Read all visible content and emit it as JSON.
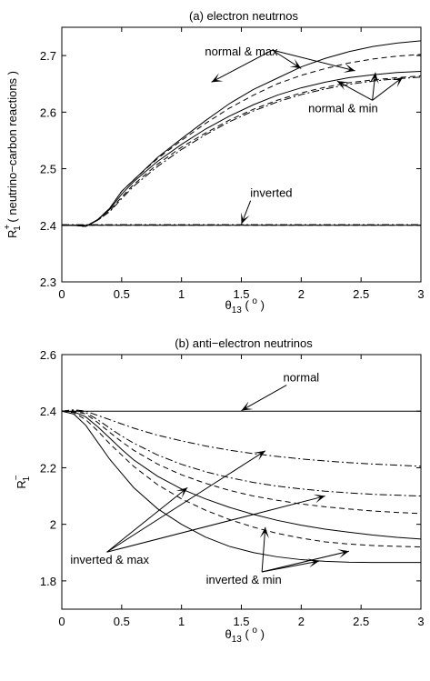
{
  "chart_data": [
    {
      "type": "line",
      "title": "(a) electron neutrnos",
      "xlabel": "θ13 ( o )",
      "ylabel": "R1+ ( neutrino−carbon reactions )",
      "xlim": [
        0,
        3
      ],
      "ylim": [
        2.3,
        2.75
      ],
      "xticks": [
        "0",
        "0.5",
        "1",
        "1.5",
        "2",
        "2.5",
        "3"
      ],
      "yticks": [
        "2.3",
        "2.4",
        "2.5",
        "2.6",
        "2.7"
      ],
      "grid": false,
      "x": [
        0,
        0.1,
        0.2,
        0.3,
        0.4,
        0.5,
        0.6,
        0.8,
        1.0,
        1.2,
        1.4,
        1.6,
        1.8,
        2.0,
        2.2,
        2.4,
        2.6,
        2.8,
        3.0
      ],
      "series": [
        {
          "style": "solid",
          "values": [
            2.4,
            2.4,
            2.398,
            2.41,
            2.43,
            2.46,
            2.48,
            2.52,
            2.553,
            2.585,
            2.615,
            2.64,
            2.66,
            2.68,
            2.695,
            2.707,
            2.716,
            2.722,
            2.726
          ]
        },
        {
          "style": "dashed",
          "values": [
            2.4,
            2.4,
            2.398,
            2.41,
            2.43,
            2.46,
            2.48,
            2.518,
            2.55,
            2.58,
            2.607,
            2.63,
            2.65,
            2.665,
            2.677,
            2.687,
            2.694,
            2.699,
            2.702
          ]
        },
        {
          "style": "solid",
          "values": [
            2.4,
            2.4,
            2.398,
            2.41,
            2.428,
            2.455,
            2.477,
            2.513,
            2.543,
            2.57,
            2.593,
            2.613,
            2.63,
            2.643,
            2.653,
            2.661,
            2.666,
            2.67,
            2.672
          ]
        },
        {
          "style": "dashed",
          "values": [
            2.4,
            2.4,
            2.398,
            2.409,
            2.425,
            2.45,
            2.472,
            2.508,
            2.538,
            2.563,
            2.586,
            2.605,
            2.621,
            2.634,
            2.644,
            2.652,
            2.657,
            2.661,
            2.664
          ]
        },
        {
          "style": "dashdot",
          "values": [
            2.4,
            2.4,
            2.398,
            2.409,
            2.424,
            2.447,
            2.469,
            2.504,
            2.534,
            2.56,
            2.583,
            2.602,
            2.618,
            2.631,
            2.641,
            2.649,
            2.655,
            2.659,
            2.662
          ]
        },
        {
          "style": "solid",
          "values": [
            2.4,
            2.4,
            2.4,
            2.4,
            2.4,
            2.4,
            2.4,
            2.4,
            2.4,
            2.4,
            2.4,
            2.4,
            2.4,
            2.4,
            2.4,
            2.4,
            2.4,
            2.4,
            2.4
          ]
        },
        {
          "style": "dashed",
          "values": [
            2.4,
            2.4,
            2.4,
            2.4,
            2.4,
            2.4,
            2.4,
            2.4,
            2.4,
            2.4,
            2.4,
            2.4,
            2.4,
            2.4,
            2.4,
            2.4,
            2.4,
            2.4,
            2.4
          ]
        },
        {
          "style": "dashdot",
          "values": [
            2.401,
            2.401,
            2.401,
            2.401,
            2.401,
            2.401,
            2.401,
            2.401,
            2.401,
            2.401,
            2.401,
            2.401,
            2.401,
            2.401,
            2.401,
            2.401,
            2.401,
            2.401,
            2.401
          ]
        }
      ],
      "annotations": [
        {
          "text": "normal & max",
          "x": 1.5,
          "y": 2.7,
          "arrows_to": [
            [
              1.25,
              2.653
            ],
            [
              2.0,
              2.677
            ],
            [
              2.45,
              2.673
            ]
          ]
        },
        {
          "text": "normal & min",
          "x": 2.35,
          "y": 2.6,
          "arrows_to": [
            [
              2.3,
              2.655
            ],
            [
              2.62,
              2.67
            ],
            [
              2.85,
              2.662
            ]
          ]
        },
        {
          "text": "inverted",
          "x": 1.75,
          "y": 2.45,
          "arrows_to": [
            [
              1.5,
              2.402
            ]
          ]
        }
      ]
    },
    {
      "type": "line",
      "title": "(b) anti−electron neutrinos",
      "xlabel": "θ13 ( o )",
      "ylabel": "R1−",
      "xlim": [
        0,
        3
      ],
      "ylim": [
        1.7,
        2.6
      ],
      "xticks": [
        "0",
        "0.5",
        "1",
        "1.5",
        "2",
        "2.5",
        "3"
      ],
      "yticks": [
        "1.8",
        "2",
        "2.2",
        "2.4",
        "2.6"
      ],
      "grid": false,
      "x": [
        0,
        0.1,
        0.2,
        0.3,
        0.4,
        0.5,
        0.6,
        0.8,
        1.0,
        1.2,
        1.4,
        1.6,
        1.8,
        2.0,
        2.2,
        2.4,
        2.6,
        2.8,
        3.0
      ],
      "series": [
        {
          "style": "solid",
          "values": [
            2.4,
            2.4,
            2.4,
            2.4,
            2.4,
            2.4,
            2.4,
            2.4,
            2.4,
            2.4,
            2.4,
            2.4,
            2.4,
            2.4,
            2.4,
            2.4,
            2.4,
            2.4,
            2.4
          ]
        },
        {
          "style": "dashdot",
          "values": [
            2.4,
            2.405,
            2.4,
            2.385,
            2.37,
            2.355,
            2.34,
            2.315,
            2.295,
            2.277,
            2.262,
            2.25,
            2.24,
            2.231,
            2.224,
            2.218,
            2.213,
            2.209,
            2.205
          ]
        },
        {
          "style": "dashdot",
          "values": [
            2.4,
            2.403,
            2.395,
            2.37,
            2.34,
            2.312,
            2.287,
            2.245,
            2.212,
            2.186,
            2.165,
            2.148,
            2.135,
            2.125,
            2.117,
            2.111,
            2.106,
            2.103,
            2.1
          ]
        },
        {
          "style": "dashed",
          "values": [
            2.4,
            2.4,
            2.39,
            2.36,
            2.325,
            2.292,
            2.262,
            2.213,
            2.175,
            2.145,
            2.12,
            2.1,
            2.085,
            2.072,
            2.062,
            2.054,
            2.047,
            2.042,
            2.038
          ]
        },
        {
          "style": "solid",
          "values": [
            2.4,
            2.398,
            2.38,
            2.345,
            2.305,
            2.265,
            2.228,
            2.17,
            2.125,
            2.09,
            2.06,
            2.035,
            2.014,
            1.997,
            1.983,
            1.972,
            1.962,
            1.954,
            1.948
          ]
        },
        {
          "style": "dashed",
          "values": [
            2.4,
            2.395,
            2.37,
            2.33,
            2.285,
            2.245,
            2.205,
            2.14,
            2.09,
            2.05,
            2.017,
            1.99,
            1.968,
            1.951,
            1.938,
            1.93,
            1.925,
            1.922,
            1.92
          ]
        },
        {
          "style": "solid",
          "values": [
            2.4,
            2.39,
            2.35,
            2.29,
            2.23,
            2.18,
            2.13,
            2.055,
            2.0,
            1.955,
            1.922,
            1.9,
            1.885,
            1.875,
            1.869,
            1.866,
            1.865,
            1.865,
            1.865
          ]
        }
      ],
      "annotations": [
        {
          "text": "normal",
          "x": 2.0,
          "y": 2.505,
          "arrows_to": [
            [
              1.5,
              2.402
            ]
          ]
        },
        {
          "text": "inverted & max",
          "x": 0.4,
          "y": 1.86,
          "arrows_to": [
            [
              1.05,
              2.13
            ],
            [
              1.7,
              2.26
            ],
            [
              2.2,
              2.1
            ]
          ]
        },
        {
          "text": "inverted & min",
          "x": 1.52,
          "y": 1.79,
          "arrows_to": [
            [
              1.7,
              1.99
            ],
            [
              2.15,
              1.87
            ],
            [
              2.4,
              1.905
            ]
          ]
        }
      ]
    }
  ]
}
